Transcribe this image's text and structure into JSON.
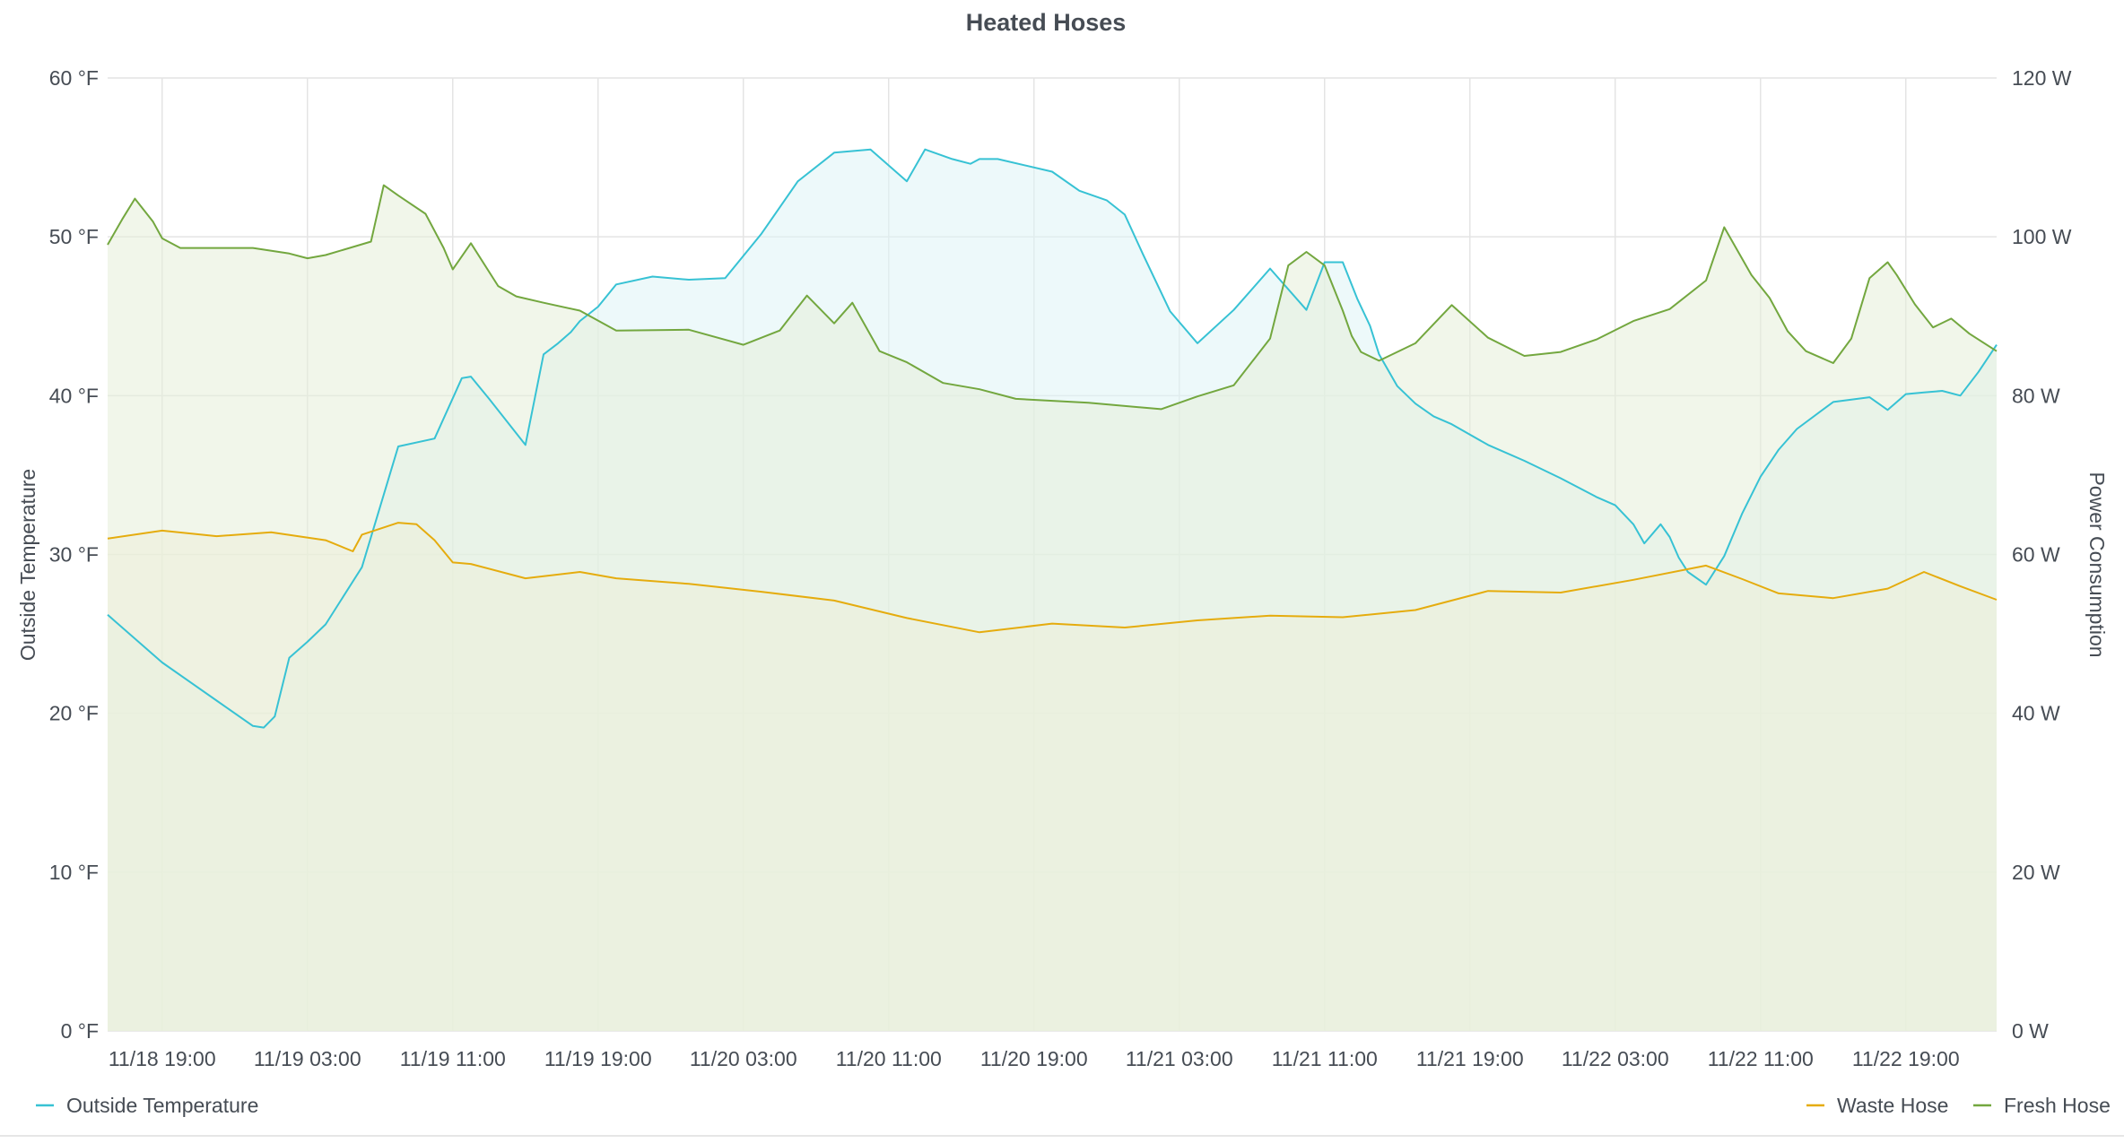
{
  "chart_data": {
    "type": "area",
    "title": "Heated Hoses",
    "x_tick_labels": [
      "11/18 19:00",
      "11/19 03:00",
      "11/19 11:00",
      "11/19 19:00",
      "11/20 03:00",
      "11/20 11:00",
      "11/20 19:00",
      "11/21 03:00",
      "11/21 11:00",
      "11/21 19:00",
      "11/22 03:00",
      "11/22 11:00",
      "11/22 19:00"
    ],
    "x_tick_hours": [
      3,
      11,
      19,
      27,
      35,
      43,
      51,
      59,
      67,
      75,
      83,
      91,
      99
    ],
    "xlim_hours": [
      0,
      104
    ],
    "x_unit_note": "hours after 11/18 16:00",
    "y_left": {
      "label": "Outside Temperature",
      "unit": "°F",
      "ylim": [
        0,
        60
      ],
      "tick_labels": [
        "0 °F",
        "10 °F",
        "20 °F",
        "30 °F",
        "40 °F",
        "50 °F",
        "60 °F"
      ],
      "ticks": [
        0,
        10,
        20,
        30,
        40,
        50,
        60
      ]
    },
    "y_right": {
      "label": "Power Consumption",
      "unit": "W",
      "ylim": [
        0,
        120
      ],
      "tick_labels": [
        "0 W",
        "20 W",
        "40 W",
        "60 W",
        "80 W",
        "100 W",
        "120 W"
      ],
      "ticks": [
        0,
        20,
        40,
        60,
        80,
        100,
        120
      ]
    },
    "grid": true,
    "series": [
      {
        "name": "Outside Temperature",
        "axis": "left",
        "color": "#37c2d4",
        "fill": "#dff4f6",
        "x": [
          0,
          3,
          6,
          8,
          8.6,
          9.2,
          10,
          11,
          12,
          14,
          16,
          18,
          19.5,
          20,
          21,
          23,
          24,
          24.8,
          25.5,
          26,
          27,
          28,
          30,
          32,
          34,
          36,
          38,
          40,
          42,
          44,
          45,
          46.5,
          47.5,
          48,
          49,
          52,
          53.5,
          55,
          56,
          57,
          58.5,
          60,
          62,
          64,
          66,
          67,
          68,
          68.8,
          69.5,
          70,
          71,
          72,
          73,
          74,
          76,
          78,
          80,
          82,
          83,
          84,
          84.6,
          85.5,
          86,
          86.5,
          87,
          88,
          89,
          90,
          91,
          92,
          93,
          95,
          97,
          98,
          99,
          100,
          101,
          102,
          103,
          104
        ],
        "values": [
          26.2,
          23.2,
          20.8,
          19.2,
          19.1,
          19.8,
          23.5,
          24.5,
          25.6,
          29.2,
          36.8,
          37.3,
          41.1,
          41.2,
          39.8,
          36.9,
          42.6,
          43.3,
          44.0,
          44.7,
          45.6,
          47.0,
          47.5,
          47.3,
          47.4,
          50.2,
          53.5,
          55.3,
          55.5,
          53.5,
          55.5,
          54.9,
          54.6,
          54.9,
          54.9,
          54.1,
          52.9,
          52.3,
          51.4,
          48.9,
          45.3,
          43.3,
          45.4,
          48.0,
          45.4,
          48.4,
          48.4,
          46.1,
          44.4,
          42.6,
          40.6,
          39.5,
          38.7,
          38.2,
          36.9,
          35.9,
          34.8,
          33.6,
          33.1,
          31.9,
          30.7,
          31.9,
          31.1,
          29.8,
          28.9,
          28.1,
          29.9,
          32.6,
          34.9,
          36.6,
          37.9,
          39.6,
          39.9,
          39.1,
          40.1,
          40.2,
          40.3,
          40.0,
          41.5,
          43.2
        ]
      },
      {
        "name": "Waste Hose",
        "axis": "right",
        "color": "#e5ac0e",
        "fill": "#f5f1d9",
        "x": [
          0,
          3,
          6,
          9,
          12,
          13.5,
          14,
          16,
          17,
          18,
          19,
          20,
          23,
          26,
          28,
          32,
          36,
          40,
          44,
          48,
          52,
          56,
          60,
          64,
          68,
          72,
          76,
          80,
          84,
          88,
          90,
          92,
          95,
          98,
          100,
          102,
          104
        ],
        "values": [
          62.0,
          63.0,
          62.3,
          62.8,
          61.8,
          60.4,
          62.5,
          64.0,
          63.8,
          61.8,
          59.0,
          58.8,
          57.0,
          57.8,
          57.0,
          56.3,
          55.3,
          54.2,
          52.0,
          50.2,
          51.3,
          50.8,
          51.7,
          52.3,
          52.1,
          53.0,
          55.4,
          55.2,
          56.8,
          58.6,
          56.9,
          55.1,
          54.5,
          55.7,
          57.8,
          56.0,
          54.3
        ]
      },
      {
        "name": "Fresh Hose",
        "axis": "right",
        "color": "#73a73f",
        "fill": "#e6efd9",
        "x": [
          0,
          0.8,
          1.5,
          2.5,
          3,
          4,
          6,
          8,
          10,
          11,
          12,
          14.5,
          15.2,
          16,
          17.5,
          18.5,
          19,
          20,
          21.5,
          22.5,
          24,
          26,
          28,
          32,
          35,
          37,
          38.5,
          40,
          41,
          42.5,
          44,
          46,
          48,
          50,
          54,
          58,
          60,
          62,
          64,
          65,
          66,
          67,
          68,
          68.5,
          69,
          70,
          72,
          74,
          76,
          78,
          80,
          82,
          84,
          86,
          88,
          89,
          90.5,
          91.5,
          92.5,
          93.5,
          95,
          96,
          97,
          98,
          98.5,
          99.5,
          100.5,
          101.5,
          102.5,
          104
        ],
        "values": [
          99.0,
          102.2,
          104.8,
          101.9,
          99.8,
          98.6,
          98.6,
          98.6,
          97.9,
          97.3,
          97.7,
          99.4,
          106.5,
          105.2,
          102.9,
          98.6,
          95.9,
          99.2,
          93.8,
          92.5,
          91.7,
          90.7,
          88.2,
          88.3,
          86.4,
          88.2,
          92.6,
          89.1,
          91.7,
          85.6,
          84.2,
          81.6,
          80.8,
          79.6,
          79.1,
          78.3,
          79.9,
          81.3,
          87.2,
          96.4,
          98.1,
          96.4,
          90.7,
          87.5,
          85.5,
          84.4,
          86.6,
          91.4,
          87.3,
          85.0,
          85.5,
          87.1,
          89.4,
          90.9,
          94.5,
          101.2,
          95.2,
          92.3,
          88.1,
          85.6,
          84.1,
          87.2,
          94.8,
          96.8,
          95.2,
          91.5,
          88.6,
          89.7,
          87.8,
          85.6
        ]
      }
    ],
    "legend": [
      {
        "name": "Outside Temperature",
        "color": "#37c2d4",
        "placement": "bottom-left"
      },
      {
        "name": "Waste Hose",
        "color": "#e5ac0e",
        "placement": "bottom-right"
      },
      {
        "name": "Fresh Hose",
        "color": "#73a73f",
        "placement": "bottom-right"
      }
    ]
  }
}
